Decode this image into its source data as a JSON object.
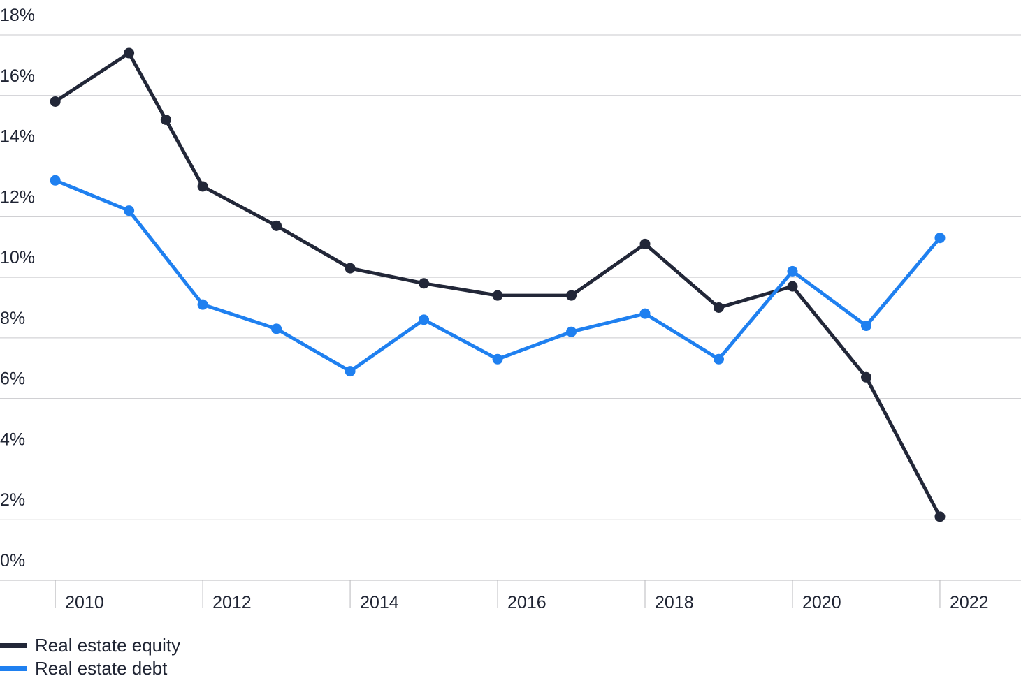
{
  "chart_data": {
    "type": "line",
    "title": "",
    "xlabel": "",
    "ylabel": "",
    "x": [
      2009.75,
      2010.75,
      2011.25,
      2011.75,
      2012.75,
      2013.75,
      2014.75,
      2015.75,
      2016.75,
      2017.75,
      2018.75,
      2019.75,
      2020.75,
      2021.75
    ],
    "ylim": [
      0,
      18
    ],
    "xlim": [
      2009,
      2022.85
    ],
    "y_ticks": [
      0,
      2,
      4,
      6,
      8,
      10,
      12,
      14,
      16,
      18
    ],
    "y_tick_labels": [
      "0%",
      "2%",
      "4%",
      "6%",
      "8%",
      "10%",
      "12%",
      "14%",
      "16%",
      "18%"
    ],
    "x_ticks": [
      2009.75,
      2011.75,
      2013.75,
      2015.75,
      2017.75,
      2019.75,
      2021.75
    ],
    "x_tick_labels": [
      "2010",
      "2012",
      "2014",
      "2016",
      "2018",
      "2020",
      "2022"
    ],
    "grid": "horizontal",
    "legend_position": "bottom-left",
    "series": [
      {
        "name": "Real estate equity",
        "color": "#222738",
        "values": [
          15.8,
          17.4,
          15.2,
          13.0,
          11.7,
          10.3,
          9.8,
          9.4,
          9.4,
          11.1,
          9.0,
          9.7,
          6.7,
          2.1
        ]
      },
      {
        "name": "Real estate debt",
        "color": "#1f80f0",
        "values": [
          13.2,
          12.2,
          null,
          9.1,
          8.3,
          6.9,
          8.6,
          7.3,
          8.2,
          8.8,
          7.3,
          10.2,
          8.4,
          11.3
        ]
      }
    ]
  }
}
